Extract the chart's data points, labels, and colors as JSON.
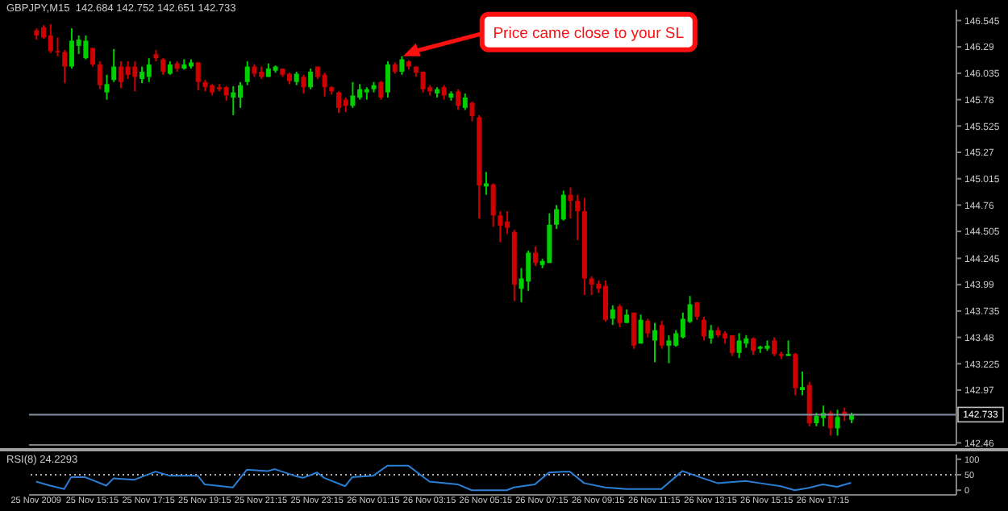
{
  "chart_data": [
    {
      "type": "candlestick",
      "title": "GBPJPY,M15  142.684 142.752 142.651 142.733",
      "x": [
        "2009-11-25T13:15",
        "2009-11-25T13:30",
        "2009-11-25T13:45",
        "2009-11-25T14:00",
        "2009-11-25T14:15",
        "2009-11-25T14:30",
        "2009-11-25T14:45",
        "2009-11-25T15:00",
        "2009-11-25T15:15",
        "2009-11-25T15:30",
        "2009-11-25T15:45",
        "2009-11-25T16:00",
        "2009-11-25T16:15",
        "2009-11-25T16:30",
        "2009-11-25T16:45",
        "2009-11-25T17:00",
        "2009-11-25T17:15",
        "2009-11-25T17:30",
        "2009-11-25T17:45",
        "2009-11-25T18:00",
        "2009-11-25T18:15",
        "2009-11-25T18:30",
        "2009-11-25T18:45",
        "2009-11-25T19:00",
        "2009-11-25T19:15",
        "2009-11-25T19:30",
        "2009-11-25T19:45",
        "2009-11-25T20:00",
        "2009-11-25T20:15",
        "2009-11-25T20:30",
        "2009-11-25T20:45",
        "2009-11-25T21:00",
        "2009-11-25T21:15",
        "2009-11-25T21:30",
        "2009-11-25T21:45",
        "2009-11-25T22:00",
        "2009-11-25T22:15",
        "2009-11-25T22:30",
        "2009-11-25T22:45",
        "2009-11-25T23:00",
        "2009-11-25T23:15",
        "2009-11-25T23:30",
        "2009-11-25T23:45",
        "2009-11-26T00:00",
        "2009-11-26T00:15",
        "2009-11-26T00:30",
        "2009-11-26T00:45",
        "2009-11-26T01:00",
        "2009-11-26T01:15",
        "2009-11-26T01:30",
        "2009-11-26T01:45",
        "2009-11-26T02:00",
        "2009-11-26T02:15",
        "2009-11-26T02:30",
        "2009-11-26T02:45",
        "2009-11-26T03:00",
        "2009-11-26T03:15",
        "2009-11-26T03:30",
        "2009-11-26T03:45",
        "2009-11-26T04:00",
        "2009-11-26T04:15",
        "2009-11-26T04:30",
        "2009-11-26T04:45",
        "2009-11-26T05:00",
        "2009-11-26T05:15",
        "2009-11-26T05:30",
        "2009-11-26T05:45",
        "2009-11-26T06:00",
        "2009-11-26T06:15",
        "2009-11-26T06:30",
        "2009-11-26T06:45",
        "2009-11-26T07:00",
        "2009-11-26T07:15",
        "2009-11-26T07:30",
        "2009-11-26T07:45",
        "2009-11-26T08:00",
        "2009-11-26T08:15",
        "2009-11-26T08:30",
        "2009-11-26T08:45",
        "2009-11-26T09:00",
        "2009-11-26T09:15",
        "2009-11-26T09:30",
        "2009-11-26T09:45",
        "2009-11-26T10:00",
        "2009-11-26T10:15",
        "2009-11-26T10:30",
        "2009-11-26T10:45",
        "2009-11-26T11:00",
        "2009-11-26T11:15",
        "2009-11-26T11:30",
        "2009-11-26T11:45",
        "2009-11-26T12:00",
        "2009-11-26T12:15",
        "2009-11-26T12:30",
        "2009-11-26T12:45",
        "2009-11-26T13:00",
        "2009-11-26T13:15",
        "2009-11-26T13:30",
        "2009-11-26T13:45",
        "2009-11-26T14:00",
        "2009-11-26T14:15",
        "2009-11-26T14:30",
        "2009-11-26T14:45",
        "2009-11-26T15:00",
        "2009-11-26T15:15",
        "2009-11-26T15:30",
        "2009-11-26T15:45",
        "2009-11-26T16:00",
        "2009-11-26T16:15",
        "2009-11-26T16:30",
        "2009-11-26T16:45",
        "2009-11-26T17:00",
        "2009-11-26T17:15",
        "2009-11-26T17:30",
        "2009-11-26T17:45",
        "2009-11-26T18:00",
        "2009-11-26T18:15"
      ],
      "ohlc": [
        [
          146.45,
          146.47,
          146.36,
          146.4
        ],
        [
          146.48,
          146.5,
          146.37,
          146.38
        ],
        [
          146.4,
          146.51,
          146.23,
          146.25
        ],
        [
          146.25,
          146.38,
          146.2,
          146.24
        ],
        [
          146.24,
          146.26,
          145.94,
          146.1
        ],
        [
          146.1,
          146.47,
          146.08,
          146.35
        ],
        [
          146.3,
          146.4,
          146.22,
          146.36
        ],
        [
          146.18,
          146.4,
          146.17,
          146.35
        ],
        [
          146.28,
          146.28,
          146.1,
          146.12
        ],
        [
          146.12,
          146.15,
          145.88,
          145.92
        ],
        [
          145.85,
          146.02,
          145.78,
          145.93
        ],
        [
          145.97,
          146.27,
          145.95,
          146.1
        ],
        [
          146.1,
          146.15,
          145.89,
          145.95
        ],
        [
          146.1,
          146.15,
          145.98,
          146.02
        ],
        [
          146.1,
          146.15,
          145.86,
          146.0
        ],
        [
          145.98,
          146.1,
          145.94,
          146.05
        ],
        [
          146.0,
          146.18,
          145.95,
          146.12
        ],
        [
          146.22,
          146.26,
          146.15,
          146.18
        ],
        [
          146.17,
          146.18,
          146.02,
          146.05
        ],
        [
          146.03,
          146.15,
          146.02,
          146.12
        ],
        [
          146.13,
          146.15,
          146.05,
          146.08
        ],
        [
          146.08,
          146.17,
          146.07,
          146.12
        ],
        [
          146.1,
          146.17,
          146.08,
          146.14
        ],
        [
          146.14,
          146.14,
          145.87,
          145.95
        ],
        [
          145.95,
          145.97,
          145.86,
          145.9
        ],
        [
          145.92,
          145.93,
          145.82,
          145.85
        ],
        [
          145.9,
          145.93,
          145.86,
          145.88
        ],
        [
          145.9,
          145.91,
          145.77,
          145.82
        ],
        [
          145.8,
          145.91,
          145.63,
          145.85
        ],
        [
          145.8,
          145.95,
          145.7,
          145.92
        ],
        [
          145.95,
          146.15,
          145.92,
          146.1
        ],
        [
          146.1,
          146.12,
          146.0,
          146.03
        ],
        [
          146.05,
          146.1,
          145.98,
          146.0
        ],
        [
          146.0,
          146.13,
          146.0,
          146.08
        ],
        [
          146.06,
          146.11,
          146.04,
          146.1
        ],
        [
          146.08,
          146.08,
          146.0,
          146.02
        ],
        [
          146.03,
          146.04,
          145.93,
          145.96
        ],
        [
          145.95,
          146.05,
          145.92,
          146.03
        ],
        [
          146.0,
          146.02,
          145.84,
          145.9
        ],
        [
          145.9,
          146.08,
          145.88,
          146.05
        ],
        [
          146.1,
          146.1,
          145.98,
          146.0
        ],
        [
          146.02,
          146.04,
          145.81,
          145.9
        ],
        [
          145.9,
          145.91,
          145.83,
          145.86
        ],
        [
          145.85,
          145.86,
          145.65,
          145.7
        ],
        [
          145.78,
          145.8,
          145.66,
          145.72
        ],
        [
          145.72,
          145.95,
          145.7,
          145.82
        ],
        [
          145.8,
          145.93,
          145.78,
          145.88
        ],
        [
          145.85,
          145.9,
          145.78,
          145.88
        ],
        [
          145.88,
          145.95,
          145.85,
          145.92
        ],
        [
          145.95,
          145.96,
          145.78,
          145.8
        ],
        [
          145.85,
          146.15,
          145.8,
          146.12
        ],
        [
          146.12,
          146.14,
          146.03,
          146.05
        ],
        [
          146.05,
          146.2,
          146.02,
          146.17
        ],
        [
          146.15,
          146.16,
          146.07,
          146.1
        ],
        [
          146.1,
          146.1,
          146.0,
          146.04
        ],
        [
          146.05,
          146.05,
          145.85,
          145.88
        ],
        [
          145.9,
          145.92,
          145.82,
          145.86
        ],
        [
          145.84,
          145.9,
          145.8,
          145.88
        ],
        [
          145.9,
          145.92,
          145.78,
          145.82
        ],
        [
          145.8,
          145.86,
          145.77,
          145.84
        ],
        [
          145.86,
          145.88,
          145.68,
          145.72
        ],
        [
          145.7,
          145.84,
          145.68,
          145.8
        ],
        [
          145.75,
          145.76,
          145.57,
          145.62
        ],
        [
          145.61,
          145.63,
          144.63,
          144.95
        ],
        [
          144.94,
          145.08,
          144.86,
          144.97
        ],
        [
          144.96,
          144.97,
          144.55,
          144.66
        ],
        [
          144.66,
          144.7,
          144.4,
          144.56
        ],
        [
          144.6,
          144.7,
          144.48,
          144.54
        ],
        [
          144.5,
          144.52,
          143.83,
          143.99
        ],
        [
          143.95,
          144.15,
          143.82,
          144.05
        ],
        [
          144.02,
          144.32,
          143.93,
          144.3
        ],
        [
          144.3,
          144.36,
          144.17,
          144.2
        ],
        [
          144.18,
          144.24,
          144.15,
          144.22
        ],
        [
          144.2,
          144.68,
          144.2,
          144.57
        ],
        [
          144.57,
          144.76,
          144.53,
          144.72
        ],
        [
          144.62,
          144.9,
          144.61,
          144.86
        ],
        [
          144.86,
          144.93,
          144.63,
          144.8
        ],
        [
          144.8,
          144.86,
          144.42,
          144.7
        ],
        [
          144.7,
          144.83,
          143.89,
          144.05
        ],
        [
          144.05,
          144.07,
          143.89,
          143.99
        ],
        [
          144.0,
          144.03,
          143.91,
          143.95
        ],
        [
          143.98,
          144.03,
          143.63,
          143.65
        ],
        [
          143.66,
          143.79,
          143.6,
          143.75
        ],
        [
          143.78,
          143.8,
          143.58,
          143.62
        ],
        [
          143.62,
          143.75,
          143.62,
          143.7
        ],
        [
          143.72,
          143.72,
          143.37,
          143.4
        ],
        [
          143.42,
          143.7,
          143.42,
          143.65
        ],
        [
          143.64,
          143.66,
          143.48,
          143.52
        ],
        [
          143.45,
          143.62,
          143.24,
          143.55
        ],
        [
          143.6,
          143.64,
          143.37,
          143.4
        ],
        [
          143.4,
          143.5,
          143.23,
          143.45
        ],
        [
          143.4,
          143.55,
          143.39,
          143.52
        ],
        [
          143.48,
          143.72,
          143.47,
          143.66
        ],
        [
          143.63,
          143.88,
          143.62,
          143.8
        ],
        [
          143.82,
          143.82,
          143.65,
          143.68
        ],
        [
          143.65,
          143.68,
          143.45,
          143.49
        ],
        [
          143.47,
          143.6,
          143.42,
          143.55
        ],
        [
          143.55,
          143.58,
          143.48,
          143.5
        ],
        [
          143.52,
          143.54,
          143.42,
          143.47
        ],
        [
          143.5,
          143.5,
          143.3,
          143.33
        ],
        [
          143.33,
          143.52,
          143.28,
          143.45
        ],
        [
          143.42,
          143.5,
          143.38,
          143.47
        ],
        [
          143.47,
          143.48,
          143.31,
          143.35
        ],
        [
          143.37,
          143.4,
          143.33,
          143.39
        ],
        [
          143.37,
          143.45,
          143.35,
          143.4
        ],
        [
          143.45,
          143.48,
          143.3,
          143.32
        ],
        [
          143.32,
          143.34,
          143.27,
          143.3
        ],
        [
          143.3,
          143.45,
          143.3,
          143.32
        ],
        [
          143.32,
          143.33,
          142.92,
          142.99
        ],
        [
          142.97,
          143.15,
          142.92,
          143.0
        ],
        [
          143.02,
          143.05,
          142.62,
          142.65
        ],
        [
          142.65,
          142.75,
          142.62,
          142.72
        ],
        [
          142.7,
          142.82,
          142.62,
          142.75
        ],
        [
          142.75,
          142.77,
          142.53,
          142.6
        ],
        [
          142.6,
          142.78,
          142.53,
          142.71
        ],
        [
          142.76,
          142.8,
          142.67,
          142.72
        ],
        [
          142.684,
          142.752,
          142.651,
          142.733
        ]
      ],
      "colors": [
        "#d00000",
        "#d00000",
        "#d00000",
        "#d00000",
        "#d00000",
        "#00d000",
        "#00d000",
        "#00d000",
        "#d00000",
        "#d00000",
        "#00d000",
        "#00d000",
        "#d00000",
        "#d00000",
        "#d00000",
        "#00d000",
        "#00d000",
        "#d00000",
        "#d00000",
        "#00d000",
        "#d00000",
        "#00d000",
        "#00d000",
        "#d00000",
        "#d00000",
        "#d00000",
        "#d00000",
        "#d00000",
        "#00d000",
        "#00d000",
        "#00d000",
        "#d00000",
        "#d00000",
        "#00d000",
        "#00d000",
        "#d00000",
        "#d00000",
        "#00d000",
        "#d00000",
        "#00d000",
        "#d00000",
        "#d00000",
        "#d00000",
        "#d00000",
        "#d00000",
        "#00d000",
        "#00d000",
        "#00d000",
        "#00d000",
        "#d00000",
        "#00d000",
        "#d00000",
        "#00d000",
        "#d00000",
        "#d00000",
        "#d00000",
        "#d00000",
        "#00d000",
        "#d00000",
        "#00d000",
        "#d00000",
        "#00d000",
        "#d00000",
        "#d00000",
        "#00d000",
        "#d00000",
        "#d00000",
        "#d00000",
        "#d00000",
        "#00d000",
        "#00d000",
        "#d00000",
        "#00d000",
        "#00d000",
        "#00d000",
        "#00d000",
        "#d00000",
        "#d00000",
        "#d00000",
        "#d00000",
        "#d00000",
        "#d00000",
        "#00d000",
        "#d00000",
        "#00d000",
        "#d00000",
        "#00d000",
        "#d00000",
        "#00d000",
        "#d00000",
        "#00d000",
        "#00d000",
        "#00d000",
        "#00d000",
        "#d00000",
        "#d00000",
        "#00d000",
        "#d00000",
        "#d00000",
        "#d00000",
        "#00d000",
        "#00d000",
        "#d00000",
        "#00d000",
        "#00d000",
        "#d00000",
        "#d00000",
        "#00d000",
        "#d00000",
        "#00d000",
        "#d00000",
        "#00d000",
        "#00d000",
        "#d00000",
        "#00d000",
        "#d00000",
        "#00d000"
      ],
      "xlim": [
        "2009-11-25T13:00",
        "2009-11-26T22:00"
      ],
      "ylim": [
        142.44,
        146.65
      ],
      "yticks": [
        146.545,
        146.29,
        146.035,
        145.78,
        145.525,
        145.27,
        145.015,
        144.76,
        144.505,
        144.245,
        143.99,
        143.735,
        143.48,
        143.225,
        142.97,
        142.46
      ],
      "ref_lines": [
        {
          "axis": "y",
          "value": 142.733,
          "label": "142.733",
          "color": "#8090a0"
        }
      ],
      "annotations": [
        {
          "text": "Price came close to your SL",
          "x": "2009-11-26T02:15",
          "y": 146.2
        }
      ],
      "tick_labels": "y"
    },
    {
      "type": "line",
      "title": "RSI(8) 24.2293",
      "x": [
        "2009-11-25T13:15",
        "2009-11-25T13:45",
        "2009-11-25T14:15",
        "2009-11-25T14:30",
        "2009-11-25T15:00",
        "2009-11-25T15:45",
        "2009-11-25T16:00",
        "2009-11-25T16:45",
        "2009-11-25T17:30",
        "2009-11-25T18:00",
        "2009-11-25T19:00",
        "2009-11-25T19:15",
        "2009-11-25T20:15",
        "2009-11-25T20:45",
        "2009-11-25T21:30",
        "2009-11-25T21:45",
        "2009-11-25T22:30",
        "2009-11-25T22:45",
        "2009-11-25T23:15",
        "2009-11-25T23:30",
        "2009-11-26T00:15",
        "2009-11-26T00:30",
        "2009-11-26T01:15",
        "2009-11-26T01:45",
        "2009-11-26T02:30",
        "2009-11-26T03:15",
        "2009-11-26T04:15",
        "2009-11-26T04:45",
        "2009-11-26T06:00",
        "2009-11-26T06:15",
        "2009-11-26T07:00",
        "2009-11-26T07:30",
        "2009-11-26T08:00",
        "2009-11-26T08:15",
        "2009-11-26T08:45",
        "2009-11-26T09:30",
        "2009-11-26T10:15",
        "2009-11-26T11:30",
        "2009-11-26T12:15",
        "2009-11-26T13:00",
        "2009-11-26T13:30",
        "2009-11-26T14:30",
        "2009-11-26T15:00",
        "2009-11-26T15:45",
        "2009-11-26T16:15",
        "2009-11-26T16:45",
        "2009-11-26T17:15",
        "2009-11-26T17:45",
        "2009-11-26T18:15"
      ],
      "series": [
        {
          "color": "#2a7fd4",
          "values": [
            28,
            15,
            4,
            42,
            42,
            15,
            38,
            34,
            60,
            47,
            47,
            19,
            9,
            66,
            62,
            68,
            45,
            40,
            57,
            40,
            13,
            42,
            47,
            79,
            79,
            28,
            19,
            0,
            0,
            9,
            19,
            57,
            60,
            60,
            23,
            9,
            4,
            4,
            62,
            38,
            23,
            30,
            23,
            13,
            0,
            8,
            19,
            11,
            24
          ]
        }
      ],
      "xlim": [
        "2009-11-25T13:00",
        "2009-11-26T22:00"
      ],
      "xticks": [
        {
          "value": "2009-11-25T13:15",
          "label": "25 Nov 2009"
        },
        {
          "value": "2009-11-25T15:15",
          "label": "25 Nov 15:15"
        },
        {
          "value": "2009-11-25T17:15",
          "label": "25 Nov 17:15"
        },
        {
          "value": "2009-11-25T19:15",
          "label": "25 Nov 19:15"
        },
        {
          "value": "2009-11-25T21:15",
          "label": "25 Nov 21:15"
        },
        {
          "value": "2009-11-25T23:15",
          "label": "25 Nov 23:15"
        },
        {
          "value": "2009-11-26T01:15",
          "label": "26 Nov 01:15"
        },
        {
          "value": "2009-11-26T03:15",
          "label": "26 Nov 03:15"
        },
        {
          "value": "2009-11-26T05:15",
          "label": "26 Nov 05:15"
        },
        {
          "value": "2009-11-26T07:15",
          "label": "26 Nov 07:15"
        },
        {
          "value": "2009-11-26T09:15",
          "label": "26 Nov 09:15"
        },
        {
          "value": "2009-11-26T11:15",
          "label": "26 Nov 11:15"
        },
        {
          "value": "2009-11-26T13:15",
          "label": "26 Nov 13:15"
        },
        {
          "value": "2009-11-26T15:15",
          "label": "26 Nov 15:15"
        },
        {
          "value": "2009-11-26T17:15",
          "label": "26 Nov 17:15"
        }
      ],
      "ylim": [
        -15,
        115
      ],
      "yticks": [
        0,
        50,
        100
      ],
      "ref_lines": [
        {
          "axis": "y",
          "value": 50,
          "color": "#b0b0b0",
          "line_style": "dotted"
        }
      ],
      "marker": "none"
    }
  ]
}
